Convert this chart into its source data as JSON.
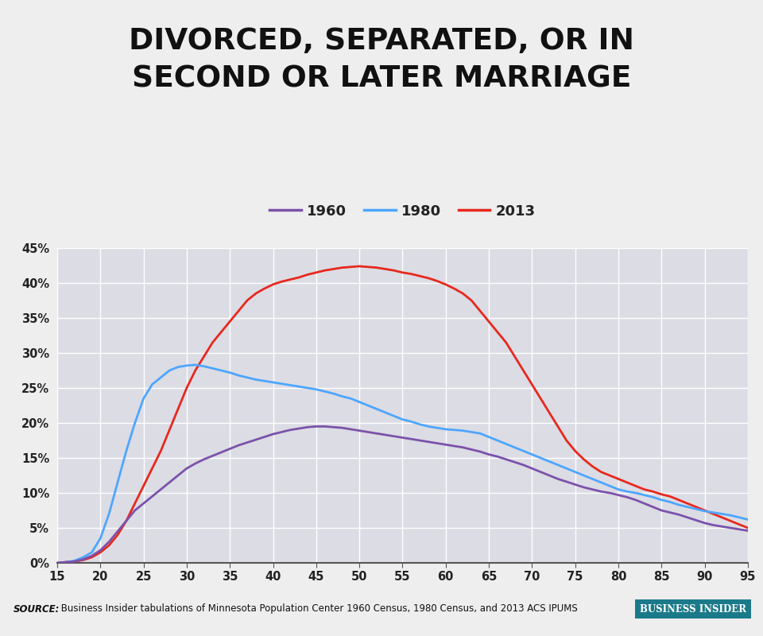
{
  "title_line1": "DIVORCED, SEPARATED, OR IN",
  "title_line2": "SECOND OR LATER MARRIAGE",
  "background_color": "#eeeeee",
  "plot_background_color": "#dcdce4",
  "grid_color": "#ffffff",
  "source_bold": "SOURCE:",
  "source_text": " Business Insider tabulations of Minnesota Population Center 1960 Census, 1980 Census, and 2013 ACS IPUMS",
  "bi_label": "Business Insider",
  "x_ticks": [
    15,
    20,
    25,
    30,
    35,
    40,
    45,
    50,
    55,
    60,
    65,
    70,
    75,
    80,
    85,
    90,
    95
  ],
  "y_ticks": [
    0,
    5,
    10,
    15,
    20,
    25,
    30,
    35,
    40,
    45
  ],
  "xlim": [
    15,
    95
  ],
  "ylim": [
    0,
    45
  ],
  "line_1960_color": "#7B52AB",
  "line_1980_color": "#4DA6FF",
  "line_2013_color": "#E8281E",
  "legend_labels": [
    "1960",
    "1980",
    "2013"
  ],
  "ages": [
    15,
    16,
    17,
    18,
    19,
    20,
    21,
    22,
    23,
    24,
    25,
    26,
    27,
    28,
    29,
    30,
    31,
    32,
    33,
    34,
    35,
    36,
    37,
    38,
    39,
    40,
    41,
    42,
    43,
    44,
    45,
    46,
    47,
    48,
    49,
    50,
    51,
    52,
    53,
    54,
    55,
    56,
    57,
    58,
    59,
    60,
    61,
    62,
    63,
    64,
    65,
    66,
    67,
    68,
    69,
    70,
    71,
    72,
    73,
    74,
    75,
    76,
    77,
    78,
    79,
    80,
    81,
    82,
    83,
    84,
    85,
    86,
    87,
    88,
    89,
    90,
    91,
    92,
    93,
    94,
    95
  ],
  "data_1960": [
    0.0,
    0.1,
    0.2,
    0.5,
    1.0,
    1.8,
    3.0,
    4.5,
    6.0,
    7.5,
    8.5,
    9.5,
    10.5,
    11.5,
    12.5,
    13.5,
    14.2,
    14.8,
    15.3,
    15.8,
    16.3,
    16.8,
    17.2,
    17.6,
    18.0,
    18.4,
    18.7,
    19.0,
    19.2,
    19.4,
    19.5,
    19.5,
    19.4,
    19.3,
    19.1,
    18.9,
    18.7,
    18.5,
    18.3,
    18.1,
    17.9,
    17.7,
    17.5,
    17.3,
    17.1,
    16.9,
    16.7,
    16.5,
    16.2,
    15.9,
    15.5,
    15.2,
    14.8,
    14.4,
    14.0,
    13.5,
    13.0,
    12.5,
    12.0,
    11.6,
    11.2,
    10.8,
    10.5,
    10.2,
    10.0,
    9.7,
    9.4,
    9.0,
    8.5,
    8.0,
    7.5,
    7.2,
    6.9,
    6.5,
    6.1,
    5.7,
    5.4,
    5.2,
    5.0,
    4.8,
    4.6
  ],
  "data_1980": [
    0.0,
    0.1,
    0.3,
    0.8,
    1.5,
    3.5,
    7.0,
    11.5,
    16.0,
    20.0,
    23.5,
    25.5,
    26.5,
    27.5,
    28.0,
    28.2,
    28.3,
    28.1,
    27.8,
    27.5,
    27.2,
    26.8,
    26.5,
    26.2,
    26.0,
    25.8,
    25.6,
    25.4,
    25.2,
    25.0,
    24.8,
    24.5,
    24.2,
    23.8,
    23.5,
    23.0,
    22.5,
    22.0,
    21.5,
    21.0,
    20.5,
    20.2,
    19.8,
    19.5,
    19.3,
    19.1,
    19.0,
    18.9,
    18.7,
    18.5,
    18.0,
    17.5,
    17.0,
    16.5,
    16.0,
    15.5,
    15.0,
    14.5,
    14.0,
    13.5,
    13.0,
    12.5,
    12.0,
    11.5,
    11.0,
    10.5,
    10.2,
    10.0,
    9.7,
    9.4,
    9.0,
    8.7,
    8.3,
    8.0,
    7.7,
    7.4,
    7.2,
    7.0,
    6.8,
    6.5,
    6.2
  ],
  "data_2013": [
    0.0,
    0.1,
    0.2,
    0.4,
    0.8,
    1.5,
    2.5,
    4.0,
    6.0,
    8.5,
    11.0,
    13.5,
    16.0,
    19.0,
    22.0,
    25.0,
    27.5,
    29.5,
    31.5,
    33.0,
    34.5,
    36.0,
    37.5,
    38.5,
    39.2,
    39.8,
    40.2,
    40.5,
    40.8,
    41.2,
    41.5,
    41.8,
    42.0,
    42.2,
    42.3,
    42.4,
    42.3,
    42.2,
    42.0,
    41.8,
    41.5,
    41.3,
    41.0,
    40.7,
    40.3,
    39.8,
    39.2,
    38.5,
    37.5,
    36.0,
    34.5,
    33.0,
    31.5,
    29.5,
    27.5,
    25.5,
    23.5,
    21.5,
    19.5,
    17.5,
    16.0,
    14.8,
    13.8,
    13.0,
    12.5,
    12.0,
    11.5,
    11.0,
    10.5,
    10.2,
    9.8,
    9.5,
    9.0,
    8.5,
    8.0,
    7.5,
    7.0,
    6.5,
    6.0,
    5.5,
    5.0
  ]
}
